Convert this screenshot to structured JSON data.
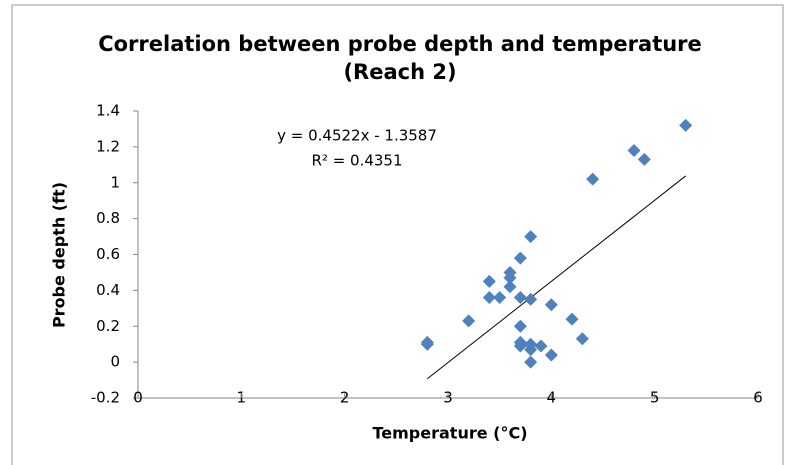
{
  "chart_data": {
    "type": "scatter",
    "title": "Correlation between probe depth and temperature",
    "subtitle": "(Reach 2)",
    "x_label": "Temperature (°C)",
    "y_label": "Probe depth (ft)",
    "color": "#4f81bd",
    "x": [
      2.8,
      2.8,
      3.2,
      3.4,
      3.4,
      3.5,
      3.6,
      3.6,
      3.6,
      3.7,
      3.7,
      3.7,
      3.7,
      3.7,
      3.8,
      3.8,
      3.8,
      3.8,
      3.8,
      3.9,
      4.0,
      4.0,
      4.2,
      4.3,
      4.4,
      4.8,
      4.9,
      5.3
    ],
    "values": [
      0.11,
      0.1,
      0.23,
      0.36,
      0.45,
      0.36,
      0.5,
      0.47,
      0.42,
      0.58,
      0.36,
      0.2,
      0.11,
      0.09,
      0.7,
      0.35,
      0.1,
      0.07,
      0.0,
      0.09,
      0.32,
      0.04,
      0.24,
      0.13,
      1.02,
      1.18,
      1.13,
      1.32
    ],
    "xlim": [
      0,
      6
    ],
    "ylim": [
      -0.2,
      1.4
    ],
    "xticks": [
      0,
      1,
      2,
      3,
      4,
      5,
      6
    ],
    "yticks": [
      -0.2,
      0,
      0.2,
      0.4,
      0.6,
      0.8,
      1,
      1.2,
      1.4
    ],
    "grid": false,
    "trendline": {
      "slope": 0.4522,
      "intercept": -1.3587,
      "x_range": [
        2.8,
        5.3
      ],
      "color": "#000000",
      "equation": "y = 0.4522x - 1.3587",
      "r_squared": "R² = 0.4351"
    }
  }
}
